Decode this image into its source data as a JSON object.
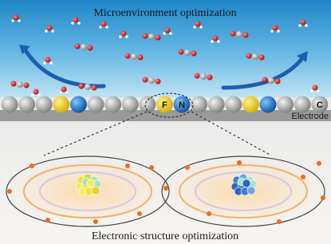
{
  "top_title": "Microenvironment optimization",
  "atom_labels": {
    "fluorine": "F",
    "nitrogen": "N",
    "carbon": "C"
  },
  "electrode_label": "Electrode",
  "bottom_title": "Electronic structure optimization"
}
